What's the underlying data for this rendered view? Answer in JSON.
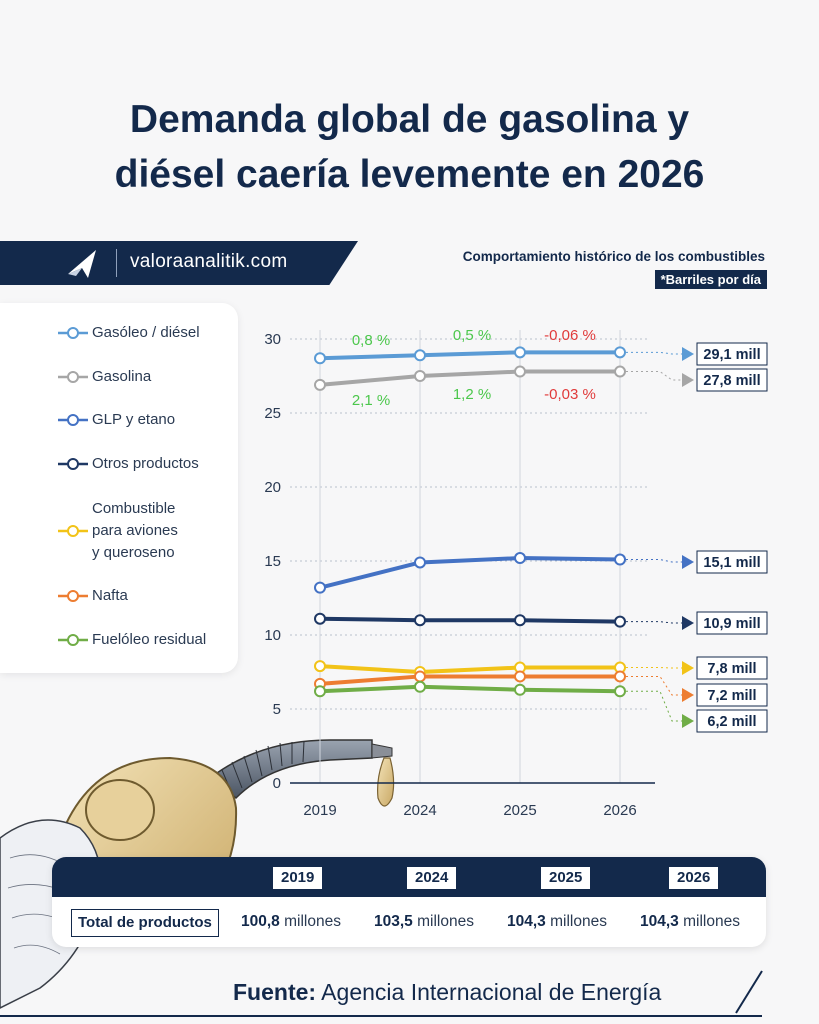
{
  "title": {
    "line1": "Demanda global de gasolina y",
    "line2": "diésel caería levemente en 2026"
  },
  "brand": {
    "site": "valoraanalitik.com",
    "logo_icon": "valora-logo-icon"
  },
  "chart_header": {
    "title": "Comportamiento histórico de los combustibles",
    "unit": "*Barriles por día"
  },
  "legend": [
    {
      "label": "Gasóleo / diésel",
      "color": "#5b9bd5"
    },
    {
      "label": "Gasolina",
      "color": "#a6a6a6"
    },
    {
      "label": "GLP y etano",
      "color": "#4472c4"
    },
    {
      "label": "Otros productos",
      "color": "#1f3864"
    },
    {
      "label": "Combustible para aviones y queroseno",
      "lines": [
        "Combustible",
        "para aviones",
        "y queroseno"
      ],
      "color": "#f2c318"
    },
    {
      "label": "Nafta",
      "color": "#ed7d31"
    },
    {
      "label": "Fuelóleo residual",
      "color": "#70ad47"
    }
  ],
  "chart_data": {
    "type": "line",
    "x": [
      "2019",
      "2024",
      "2025",
      "2026"
    ],
    "ylim": [
      0,
      30
    ],
    "yticks": [
      0,
      5,
      10,
      15,
      20,
      25,
      30
    ],
    "grid": true,
    "series": [
      {
        "name": "Gasóleo / diésel",
        "color": "#5b9bd5",
        "values": [
          28.7,
          28.9,
          29.1,
          29.1
        ],
        "end_label": "29,1 mill",
        "arrow_color": "#5b9bd5"
      },
      {
        "name": "Gasolina",
        "color": "#a6a6a6",
        "values": [
          26.9,
          27.5,
          27.8,
          27.8
        ],
        "end_label": "27,8 mill",
        "arrow_color": "#a6a6a6"
      },
      {
        "name": "GLP y etano",
        "color": "#4472c4",
        "values": [
          13.2,
          14.9,
          15.2,
          15.1
        ],
        "end_label": "15,1 mill",
        "arrow_color": "#4472c4"
      },
      {
        "name": "Otros productos",
        "color": "#1f3864",
        "values": [
          11.1,
          11.0,
          11.0,
          10.9
        ],
        "end_label": "10,9 mill",
        "arrow_color": "#1f3864"
      },
      {
        "name": "Combustible para aviones y queroseno",
        "color": "#f2c318",
        "values": [
          7.9,
          7.5,
          7.8,
          7.8
        ],
        "end_label": "7,8 mill",
        "arrow_color": "#f2c318"
      },
      {
        "name": "Nafta",
        "color": "#ed7d31",
        "values": [
          6.7,
          7.2,
          7.2,
          7.2
        ],
        "end_label": "7,2 mill",
        "arrow_color": "#ed7d31"
      },
      {
        "name": "Fuelóleo residual",
        "color": "#70ad47",
        "values": [
          6.2,
          6.5,
          6.3,
          6.2
        ],
        "end_label": "6,2 mill",
        "arrow_color": "#70ad47"
      }
    ],
    "annotations": [
      {
        "text": "0,8 %",
        "color": "#4cc74c",
        "pos": "diesel-2019-2024"
      },
      {
        "text": "0,5 %",
        "color": "#4cc74c",
        "pos": "diesel-2024-2025"
      },
      {
        "text": "-0,06 %",
        "color": "#e03a3a",
        "pos": "diesel-2025-2026"
      },
      {
        "text": "2,1 %",
        "color": "#4cc74c",
        "pos": "gasolina-2019-2024"
      },
      {
        "text": "1,2 %",
        "color": "#4cc74c",
        "pos": "gasolina-2024-2025"
      },
      {
        "text": "-0,03 %",
        "color": "#e03a3a",
        "pos": "gasolina-2025-2026"
      }
    ]
  },
  "totals": {
    "row_label": "Total de productos",
    "years": [
      "2019",
      "2024",
      "2025",
      "2026"
    ],
    "values": [
      {
        "num": "100,8",
        "unit": " millones"
      },
      {
        "num": "103,5",
        "unit": " millones"
      },
      {
        "num": "104,3",
        "unit": " millones"
      },
      {
        "num": "104,3",
        "unit": " millones"
      }
    ]
  },
  "source": {
    "label": "Fuente:",
    "text": " Agencia Internacional de Energía"
  },
  "illustration": {
    "icon": "fuel-nozzle-hand-icon"
  }
}
